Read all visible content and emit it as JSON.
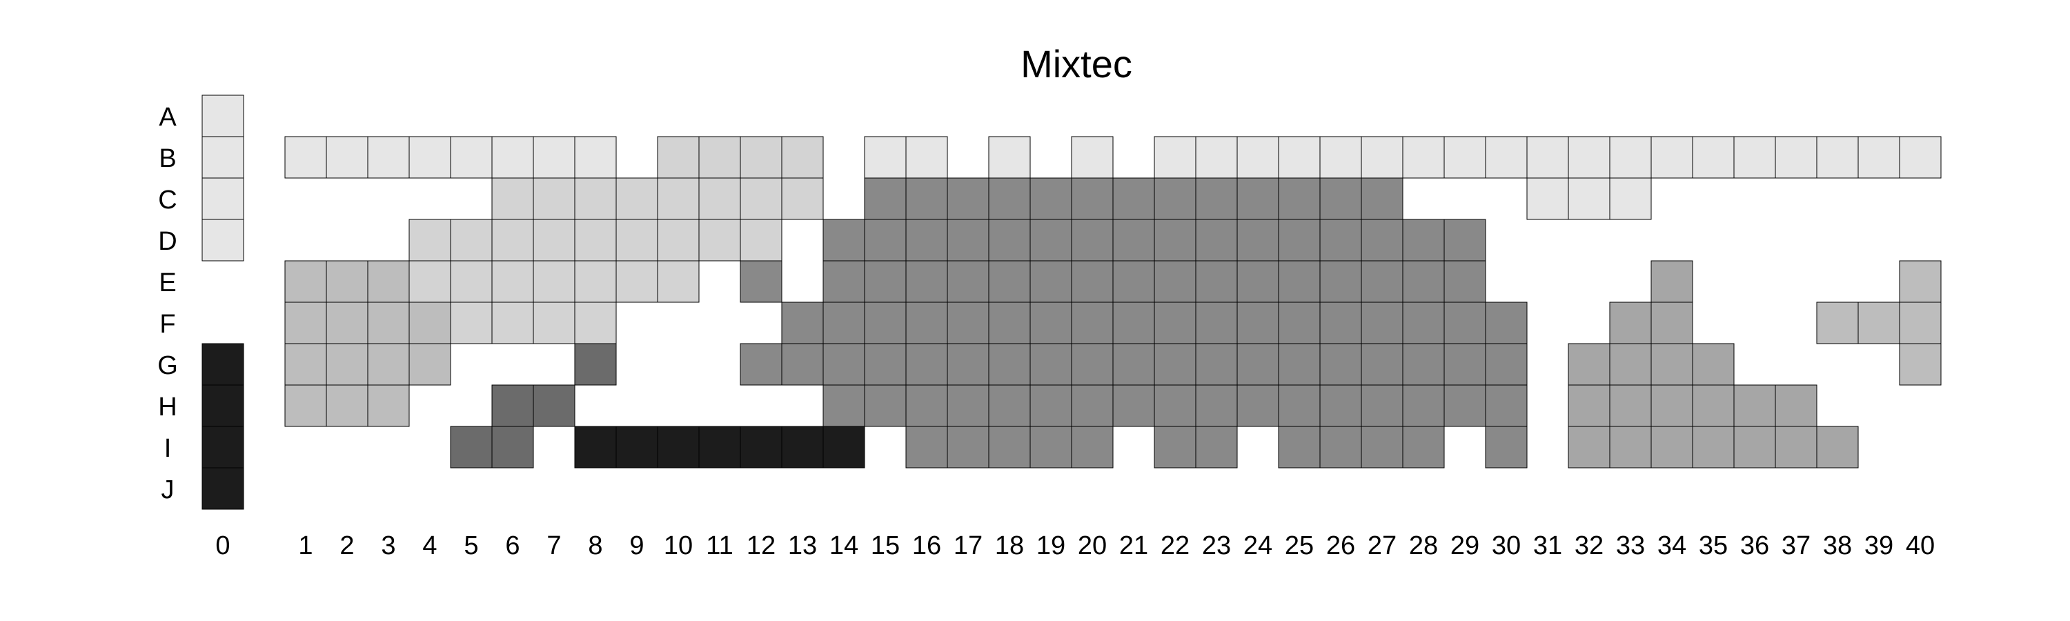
{
  "chart_data": {
    "type": "heatmap",
    "title": "Mixtec",
    "rows": [
      "A",
      "B",
      "C",
      "D",
      "E",
      "F",
      "G",
      "H",
      "I",
      "J"
    ],
    "columns": [
      "0",
      "1",
      "2",
      "3",
      "4",
      "5",
      "6",
      "7",
      "8",
      "9",
      "10",
      "11",
      "12",
      "13",
      "14",
      "15",
      "16",
      "17",
      "18",
      "19",
      "20",
      "21",
      "22",
      "23",
      "24",
      "25",
      "26",
      "27",
      "28",
      "29",
      "30",
      "31",
      "32",
      "33",
      "34",
      "35",
      "36",
      "37",
      "38",
      "39",
      "40"
    ],
    "shades": [
      "#e6e6e6",
      "#d3d3d3",
      "#bdbdbd",
      "#a6a6a6",
      "#898989",
      "#6b6b6b",
      "#1c1c1c"
    ],
    "grid": {
      "A": [
        0,
        null,
        null,
        null,
        null,
        null,
        null,
        null,
        null,
        null,
        null,
        null,
        null,
        null,
        null,
        null,
        null,
        null,
        null,
        null,
        null,
        null,
        null,
        null,
        null,
        null,
        null,
        null,
        null,
        null,
        null,
        null,
        null,
        null,
        null,
        null,
        null,
        null,
        null,
        null,
        null
      ],
      "B": [
        0,
        0,
        0,
        0,
        0,
        0,
        0,
        0,
        0,
        null,
        1,
        1,
        1,
        1,
        null,
        0,
        0,
        null,
        0,
        null,
        0,
        null,
        0,
        0,
        0,
        0,
        0,
        0,
        0,
        0,
        0,
        0,
        0,
        0,
        0,
        0,
        0,
        0,
        0,
        0,
        0
      ],
      "C": [
        0,
        null,
        null,
        null,
        null,
        null,
        1,
        1,
        1,
        1,
        1,
        1,
        1,
        1,
        null,
        4,
        4,
        4,
        4,
        4,
        4,
        4,
        4,
        4,
        4,
        4,
        4,
        4,
        null,
        null,
        null,
        0,
        0,
        0,
        null,
        null,
        null,
        null,
        null,
        null,
        null
      ],
      "D": [
        0,
        null,
        null,
        null,
        1,
        1,
        1,
        1,
        1,
        1,
        1,
        1,
        1,
        null,
        4,
        4,
        4,
        4,
        4,
        4,
        4,
        4,
        4,
        4,
        4,
        4,
        4,
        4,
        4,
        4,
        null,
        null,
        null,
        null,
        null,
        null,
        null,
        null,
        null,
        null,
        null
      ],
      "E": [
        null,
        2,
        2,
        2,
        1,
        1,
        1,
        1,
        1,
        1,
        1,
        null,
        4,
        null,
        4,
        4,
        4,
        4,
        4,
        4,
        4,
        4,
        4,
        4,
        4,
        4,
        4,
        4,
        4,
        4,
        null,
        null,
        null,
        null,
        3,
        null,
        null,
        null,
        null,
        null,
        2
      ],
      "F": [
        null,
        2,
        2,
        2,
        2,
        1,
        1,
        1,
        1,
        null,
        null,
        null,
        null,
        4,
        4,
        4,
        4,
        4,
        4,
        4,
        4,
        4,
        4,
        4,
        4,
        4,
        4,
        4,
        4,
        4,
        4,
        null,
        null,
        3,
        3,
        null,
        null,
        null,
        2,
        2,
        2
      ],
      "G": [
        6,
        2,
        2,
        2,
        2,
        null,
        null,
        null,
        5,
        null,
        null,
        null,
        4,
        4,
        4,
        4,
        4,
        4,
        4,
        4,
        4,
        4,
        4,
        4,
        4,
        4,
        4,
        4,
        4,
        4,
        4,
        null,
        3,
        3,
        3,
        3,
        null,
        null,
        null,
        null,
        2
      ],
      "H": [
        6,
        2,
        2,
        2,
        null,
        null,
        5,
        5,
        null,
        null,
        null,
        null,
        null,
        null,
        4,
        4,
        4,
        4,
        4,
        4,
        4,
        4,
        4,
        4,
        4,
        4,
        4,
        4,
        4,
        4,
        4,
        null,
        3,
        3,
        3,
        3,
        3,
        3,
        null,
        null,
        null
      ],
      "I": [
        6,
        null,
        null,
        null,
        null,
        5,
        5,
        null,
        6,
        6,
        6,
        6,
        6,
        6,
        6,
        null,
        4,
        4,
        4,
        4,
        4,
        null,
        4,
        4,
        null,
        4,
        4,
        4,
        4,
        null,
        4,
        null,
        3,
        3,
        3,
        3,
        3,
        3,
        3,
        null,
        null
      ],
      "J": [
        6,
        null,
        null,
        null,
        null,
        null,
        null,
        null,
        null,
        null,
        null,
        null,
        null,
        null,
        null,
        null,
        null,
        null,
        null,
        null,
        null,
        null,
        null,
        null,
        null,
        null,
        null,
        null,
        null,
        null,
        null,
        null,
        null,
        null,
        null,
        null,
        null,
        null,
        null,
        null,
        null
      ]
    }
  }
}
